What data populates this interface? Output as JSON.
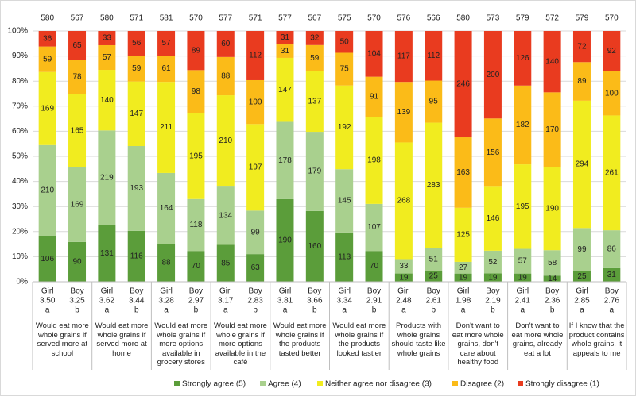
{
  "chart_data": {
    "type": "stacked_bar_100",
    "categories": [
      "Girl",
      "Boy",
      "Girl",
      "Boy",
      "Girl",
      "Boy",
      "Girl",
      "Boy",
      "Girl",
      "Boy",
      "Girl",
      "Boy",
      "Girl",
      "Boy",
      "Girl",
      "Boy",
      "Girl",
      "Boy",
      "Girl",
      "Boy"
    ],
    "means": [
      "3.50",
      "3.25",
      "3.62",
      "3.44",
      "3.28",
      "2.97",
      "3.17",
      "2.83",
      "3.81",
      "3.66",
      "3.34",
      "2.91",
      "2.48",
      "2.61",
      "1.98",
      "2.19",
      "2.41",
      "2.36",
      "2.85",
      "2.76"
    ],
    "letters": [
      "a",
      "b",
      "a",
      "b",
      "a",
      "b",
      "a",
      "b",
      "a",
      "b",
      "a",
      "b",
      "a",
      "b",
      "a",
      "b",
      "a",
      "b",
      "a",
      "a"
    ],
    "groups": [
      "Would eat more whole grains if served more at school",
      "Would eat more whole grains if served more at home",
      "Would eat more whole grains if more options available in grocery stores",
      "Would eat more whole grains if more options available in the café",
      "Would eat more whole grains if the products tasted better",
      "Would eat more whole grains if the products looked tastier",
      "Products with whole grains should taste like whole grains",
      "Don't want to eat more whole grains, don't care about healthy food",
      "Don't want to eat more whole grains, already eat a lot",
      "If I know that the product contains whole grains, it appeals to me"
    ],
    "totals": [
      580,
      567,
      580,
      571,
      581,
      570,
      577,
      571,
      577,
      567,
      575,
      570,
      576,
      566,
      580,
      573,
      579,
      572,
      579,
      570
    ],
    "series": [
      {
        "name": "Strongly agree (5)",
        "color": "#5b9d3a",
        "values": [
          106,
          90,
          131,
          116,
          88,
          70,
          85,
          63,
          190,
          160,
          113,
          70,
          19,
          25,
          19,
          19,
          19,
          14,
          25,
          31
        ]
      },
      {
        "name": "Agree (4)",
        "color": "#a9d08e",
        "values": [
          210,
          169,
          219,
          193,
          164,
          118,
          134,
          99,
          178,
          179,
          145,
          107,
          33,
          51,
          27,
          52,
          57,
          58,
          99,
          86
        ]
      },
      {
        "name": "Neither agree nor disagree (3)",
        "color": "#f1ec1f",
        "values": [
          169,
          165,
          140,
          147,
          211,
          195,
          210,
          197,
          147,
          137,
          192,
          198,
          268,
          283,
          125,
          146,
          195,
          190,
          294,
          261
        ]
      },
      {
        "name": "Disagree (2)",
        "color": "#fbbb18",
        "values": [
          59,
          78,
          57,
          59,
          61,
          98,
          88,
          100,
          31,
          59,
          75,
          91,
          139,
          95,
          163,
          156,
          182,
          170,
          89,
          100
        ]
      },
      {
        "name": "Strongly disagree (1)",
        "color": "#e93b1f",
        "values": [
          36,
          65,
          33,
          56,
          57,
          89,
          60,
          112,
          31,
          32,
          50,
          104,
          117,
          112,
          246,
          200,
          126,
          140,
          72,
          92
        ]
      }
    ],
    "ylim": [
      0,
      100
    ],
    "yticks": [
      {
        "value": 0,
        "label": "0%"
      },
      {
        "value": 10,
        "label": "10%"
      },
      {
        "value": 20,
        "label": "20%"
      },
      {
        "value": 30,
        "label": "30%"
      },
      {
        "value": 40,
        "label": "40%"
      },
      {
        "value": 50,
        "label": "50%"
      },
      {
        "value": 60,
        "label": "60%"
      },
      {
        "value": 70,
        "label": "70%"
      },
      {
        "value": 80,
        "label": "80%"
      },
      {
        "value": 90,
        "label": "90%"
      },
      {
        "value": 100,
        "label": "100%"
      }
    ],
    "grid": true,
    "legend": "bottom"
  }
}
